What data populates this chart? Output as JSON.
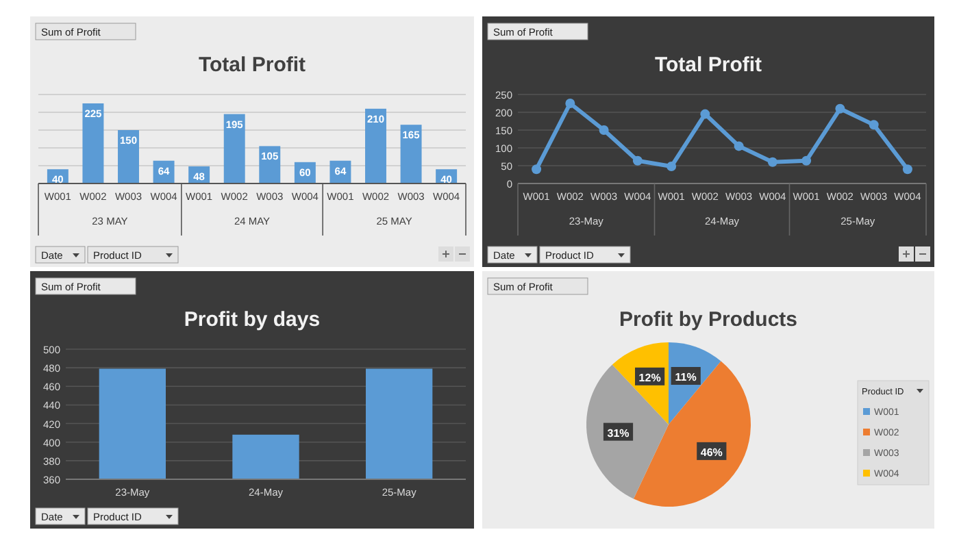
{
  "chart_data": [
    {
      "type": "bar",
      "title": "Total Profit",
      "ylabel": "Sum of Profit",
      "categories": [
        "W001",
        "W002",
        "W003",
        "W004",
        "W001",
        "W002",
        "W003",
        "W004",
        "W001",
        "W002",
        "W003",
        "W004"
      ],
      "values": [
        40,
        225,
        150,
        64,
        48,
        195,
        105,
        60,
        64,
        210,
        165,
        40
      ],
      "color": "#5b9bd5",
      "data_labels": true,
      "ylim": [
        0,
        250
      ],
      "yticks": [
        {
          "value": 0,
          "label": null
        },
        {
          "value": 50,
          "label": null
        },
        {
          "value": 100,
          "label": null
        },
        {
          "value": 150,
          "label": null
        },
        {
          "value": 200,
          "label": null
        },
        {
          "value": 250,
          "label": null
        }
      ],
      "tick_labels": "x",
      "grid": "y",
      "annotations": [
        "23 MAY",
        "24 MAY",
        "25 MAY",
        "Date",
        "Product ID"
      ]
    },
    {
      "type": "line",
      "title": "Total Profit",
      "ylabel": "Sum of Profit",
      "categories": [
        "W001",
        "W002",
        "W003",
        "W004",
        "W001",
        "W002",
        "W003",
        "W004",
        "W001",
        "W002",
        "W003",
        "W004"
      ],
      "values": [
        40,
        225,
        150,
        64,
        48,
        195,
        105,
        60,
        64,
        210,
        165,
        40
      ],
      "color": "#5b9bd5",
      "marker": "circle",
      "ylim": [
        0,
        250
      ],
      "yticks": [
        0,
        50,
        100,
        150,
        200,
        250
      ],
      "grid": "y",
      "annotations": [
        "23-May",
        "24-May",
        "25-May",
        "Date",
        "Product ID"
      ]
    },
    {
      "type": "bar",
      "title": "Profit by days",
      "ylabel": "Sum of Profit",
      "categories": [
        "23-May",
        "24-May",
        "25-May"
      ],
      "values": [
        479,
        408,
        479
      ],
      "color": "#5b9bd5",
      "ylim": [
        360,
        500
      ],
      "yticks": [
        360,
        380,
        400,
        420,
        440,
        460,
        480,
        500
      ],
      "grid": "y",
      "annotations": [
        "Date",
        "Product ID"
      ]
    },
    {
      "type": "pie",
      "title": "Profit by Products",
      "ylabel": "Sum of Profit",
      "categories": [
        "W001",
        "W002",
        "W003",
        "W004"
      ],
      "values": [
        11,
        46,
        31,
        12
      ],
      "colors": [
        "#5b9bd5",
        "#ed7d31",
        "#a5a5a5",
        "#ffc000"
      ],
      "value_labels": [
        "11%",
        "46%",
        "31%",
        "12%"
      ],
      "legend": "right",
      "legend_title": "Product ID"
    }
  ]
}
